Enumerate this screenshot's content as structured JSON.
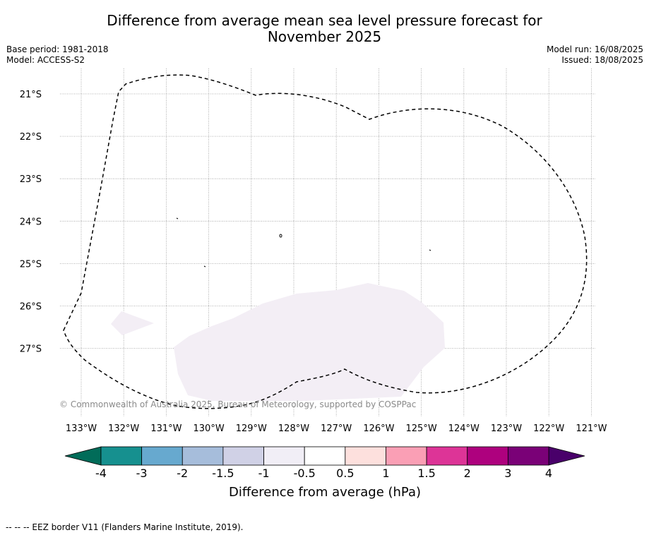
{
  "title_line1": "Difference from average mean sea level pressure forecast for",
  "title_line2": "November 2025",
  "meta_left": [
    "Base period: 1981-2018",
    "Model: ACCESS-S2"
  ],
  "meta_right": [
    "Model run: 16/08/2025",
    "Issued: 18/08/2025"
  ],
  "copyright": "© Commonwealth of Australia 2025, Bureau of Meteorology, supported by COSPPac",
  "footnote": "-- -- -- EEZ border V11 (Flanders Marine Institute, 2019).",
  "map": {
    "lat_labels": [
      "21°S",
      "22°S",
      "23°S",
      "24°S",
      "25°S",
      "26°S",
      "27°S"
    ],
    "lon_labels": [
      "133°W",
      "132°W",
      "131°W",
      "130°W",
      "129°W",
      "128°W",
      "127°W",
      "126°W",
      "125°W",
      "124°W",
      "123°W",
      "122°W",
      "121°W"
    ],
    "lat_range": [
      -28.4,
      -20.4
    ],
    "lon_range": [
      -133.35,
      -120.95
    ],
    "anomaly_regions": [
      {
        "category": "-0.5 to -1",
        "color": "#f3eef5",
        "description": "main region south"
      },
      {
        "category": "-0.5 to -1",
        "color": "#f3eef5",
        "description": "small region southwest"
      }
    ]
  },
  "colorbar": {
    "title": "Difference from average (hPa)",
    "tick_labels": [
      "-4",
      "-3",
      "-2",
      "-1.5",
      "-1",
      "-0.5",
      "0.5",
      "1",
      "1.5",
      "2",
      "3",
      "4"
    ],
    "colors": [
      "#16908f",
      "#67a9cf",
      "#a6bddb",
      "#d0d1e6",
      "#f1eef6",
      "#ffffff",
      "#fde0dd",
      "#fa9fb5",
      "#dd3497",
      "#ae017e",
      "#7a0177"
    ],
    "under_color": "#016c59",
    "over_color": "#49006a"
  }
}
